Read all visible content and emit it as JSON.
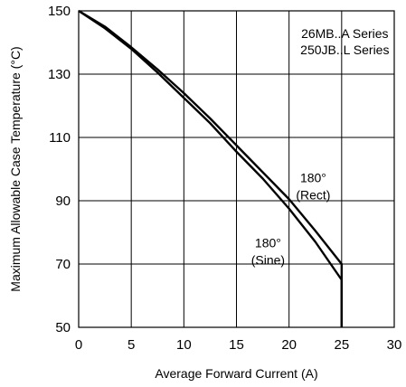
{
  "chart_data": {
    "type": "line",
    "title": "",
    "xlabel": "Average Forward Current (A)",
    "ylabel": "Maximum Allowable Case Temperature (°C)",
    "xlim": [
      0,
      30
    ],
    "ylim": [
      50,
      150
    ],
    "x_ticks": [
      0,
      5,
      10,
      15,
      20,
      25,
      30
    ],
    "y_ticks": [
      50,
      70,
      90,
      110,
      130,
      150
    ],
    "grid": true,
    "legend": {
      "position": "top-right",
      "lines": [
        "26MB..A Series",
        "250JB..L Series"
      ]
    },
    "series": [
      {
        "x": [
          0,
          2.5,
          5,
          7.5,
          10,
          12.5,
          15,
          17.5,
          20,
          22.5,
          25,
          25,
          25
        ],
        "y": [
          150,
          144.5,
          138,
          130.5,
          122.5,
          114.5,
          105.5,
          97,
          87.5,
          77,
          65,
          64,
          50
        ]
      },
      {
        "x": [
          0,
          2.5,
          5,
          7.5,
          10,
          12.5,
          15,
          17.5,
          20,
          22.5,
          25,
          25
        ],
        "y": [
          150,
          145,
          138.5,
          131.5,
          124,
          116,
          107.5,
          99,
          90.5,
          80.5,
          70,
          50
        ]
      }
    ],
    "annotations": [
      {
        "lines": [
          "180°",
          "(Rect)"
        ],
        "x": 22.3,
        "y": 93
      },
      {
        "lines": [
          "180°",
          "(Sine)"
        ],
        "x": 18,
        "y": 72.5
      }
    ]
  }
}
